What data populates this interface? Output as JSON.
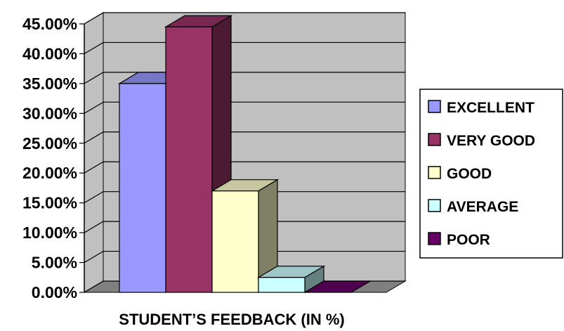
{
  "chart_data": {
    "type": "bar",
    "title": "",
    "xlabel": "STUDENT’S FEEDBACK (IN %)",
    "ylabel": "",
    "ylim": [
      0,
      45
    ],
    "y_ticks": [
      "0.00%",
      "5.00%",
      "10.00%",
      "15.00%",
      "20.00%",
      "25.00%",
      "30.00%",
      "35.00%",
      "40.00%",
      "45.00%"
    ],
    "grid": true,
    "legend_position": "right",
    "series": [
      {
        "name": "EXCELLENT",
        "value": 35,
        "color": "#9999FF"
      },
      {
        "name": "VERY GOOD",
        "value": 44.5,
        "color": "#993366"
      },
      {
        "name": "GOOD",
        "value": 17,
        "color": "#FFFFCC"
      },
      {
        "name": "AVERAGE",
        "value": 2.5,
        "color": "#CCFFFF"
      },
      {
        "name": "POOR",
        "value": 0,
        "color": "#660066"
      }
    ]
  }
}
